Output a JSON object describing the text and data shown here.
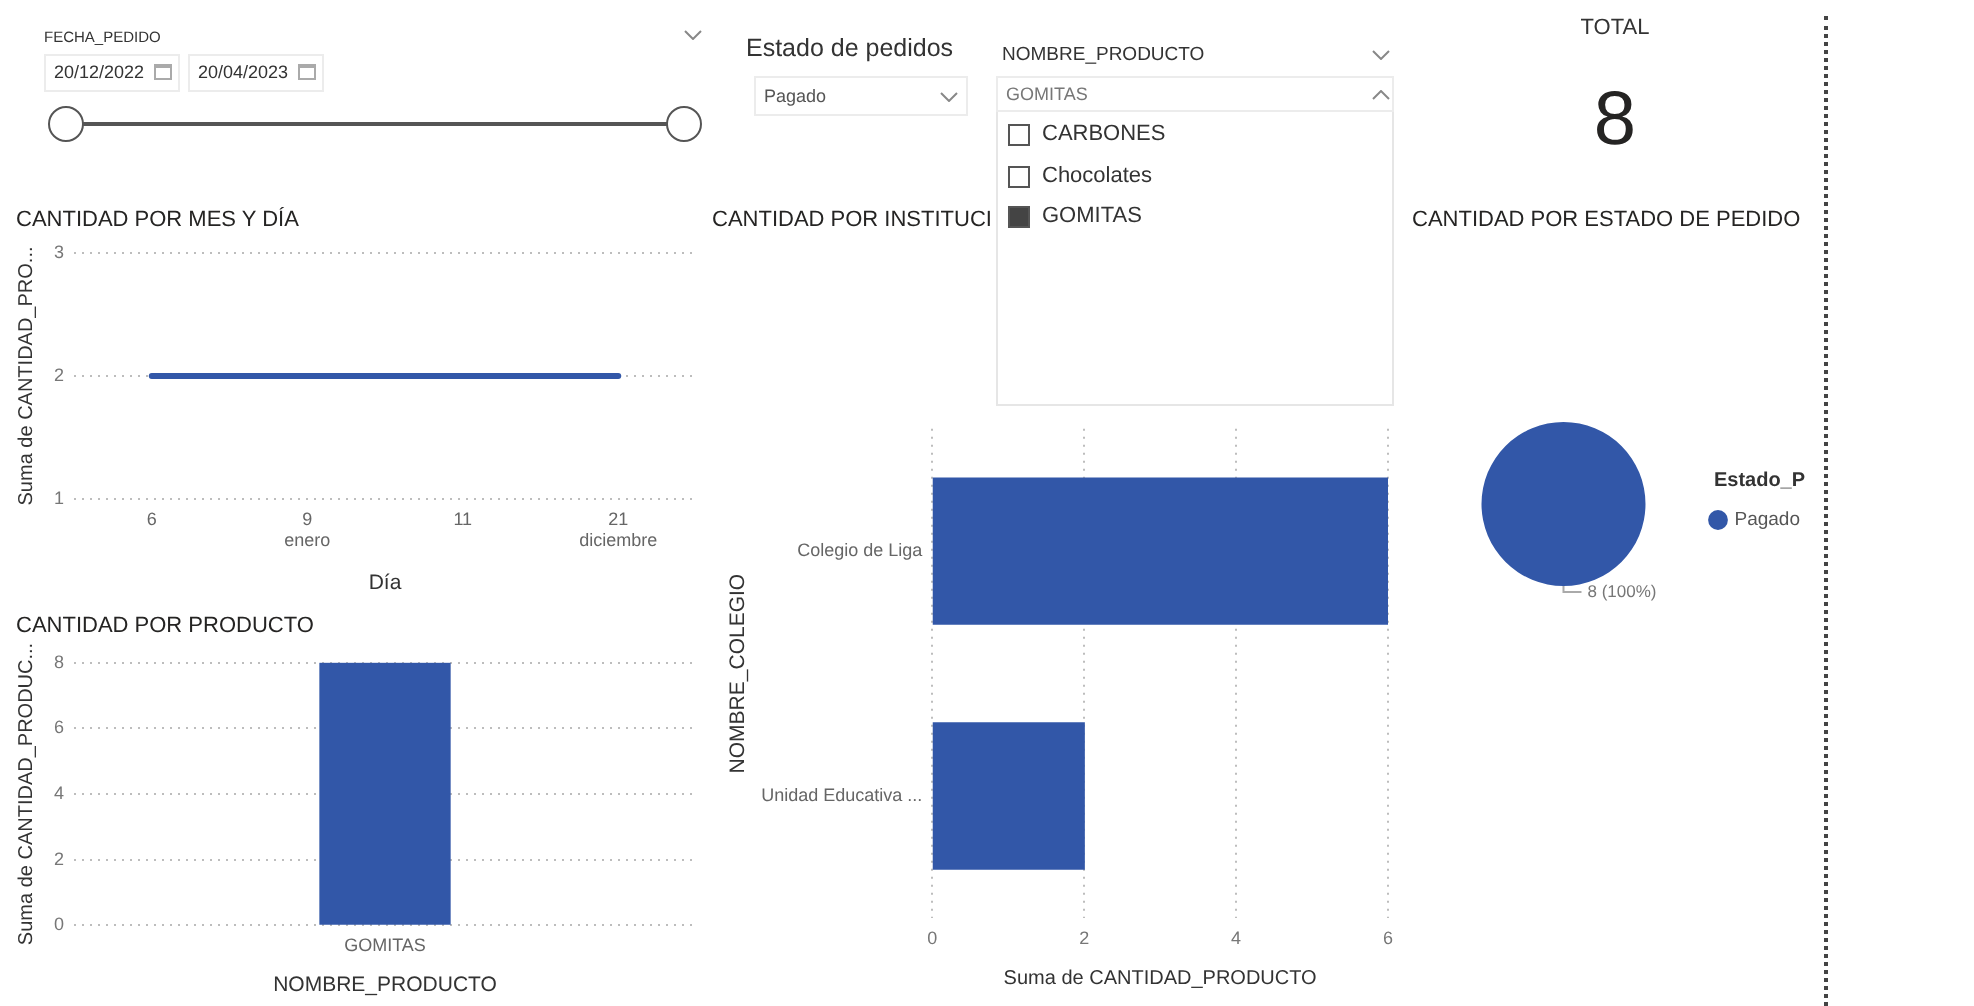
{
  "chart_data": [
    {
      "type": "other",
      "title": "FECHA_PEDIDO",
      "annotations": [
        "20/12/2022",
        "20/04/2023"
      ]
    },
    {
      "type": "other",
      "title": "Estado de pedidos",
      "annotations": [
        "Pagado"
      ]
    },
    {
      "type": "other",
      "title": "NOMBRE_PRODUCTO",
      "annotations": [
        "GOMITAS",
        "CARBONES",
        "Chocolates",
        "GOMITAS"
      ]
    },
    {
      "type": "other",
      "title": "TOTAL",
      "values": [
        8
      ],
      "data_labels": true
    },
    {
      "type": "line",
      "title": "CANTIDAD POR MES Y DÍA",
      "xlabel": "Día",
      "ylabel": "Suma de CANTIDAD_PRO...",
      "categories": [
        "6",
        "9",
        "11",
        "21"
      ],
      "values": [
        2,
        2,
        2,
        2
      ],
      "color": "#3257a8",
      "ylim": [
        1,
        3
      ],
      "yticks": [
        1,
        2,
        3
      ],
      "grid": "y",
      "annotations": [
        "enero",
        "diciembre"
      ]
    },
    {
      "type": "bar",
      "orientation": "horizontal",
      "title": "CANTIDAD POR INSTITUCI",
      "xlabel": "Suma de CANTIDAD_PRODUCTO",
      "ylabel": "NOMBRE_COLEGIO",
      "categories": [
        "Colegio de Liga",
        "Unidad Educativa ..."
      ],
      "values": [
        6,
        2
      ],
      "color": "#3257a8",
      "xlim": [
        0,
        6
      ],
      "xticks": [
        0,
        2,
        4,
        6
      ],
      "grid": "x"
    },
    {
      "type": "pie",
      "title": "CANTIDAD POR ESTADO DE PEDIDO",
      "categories": [
        "Pagado"
      ],
      "values": [
        8
      ],
      "colors": [
        "#3257a8"
      ],
      "value_labels": [
        "8 (100%)"
      ],
      "legend": "right",
      "legend_title": "Estado_P"
    },
    {
      "type": "bar",
      "title": "CANTIDAD POR PRODUCTO",
      "xlabel": "NOMBRE_PRODUCTO",
      "ylabel": "Suma de CANTIDAD_PRODUC...",
      "categories": [
        "GOMITAS"
      ],
      "values": [
        8
      ],
      "color": "#3257a8",
      "ylim": [
        0,
        8
      ],
      "yticks": [
        0,
        2,
        4,
        6,
        8
      ],
      "grid": "y"
    }
  ]
}
